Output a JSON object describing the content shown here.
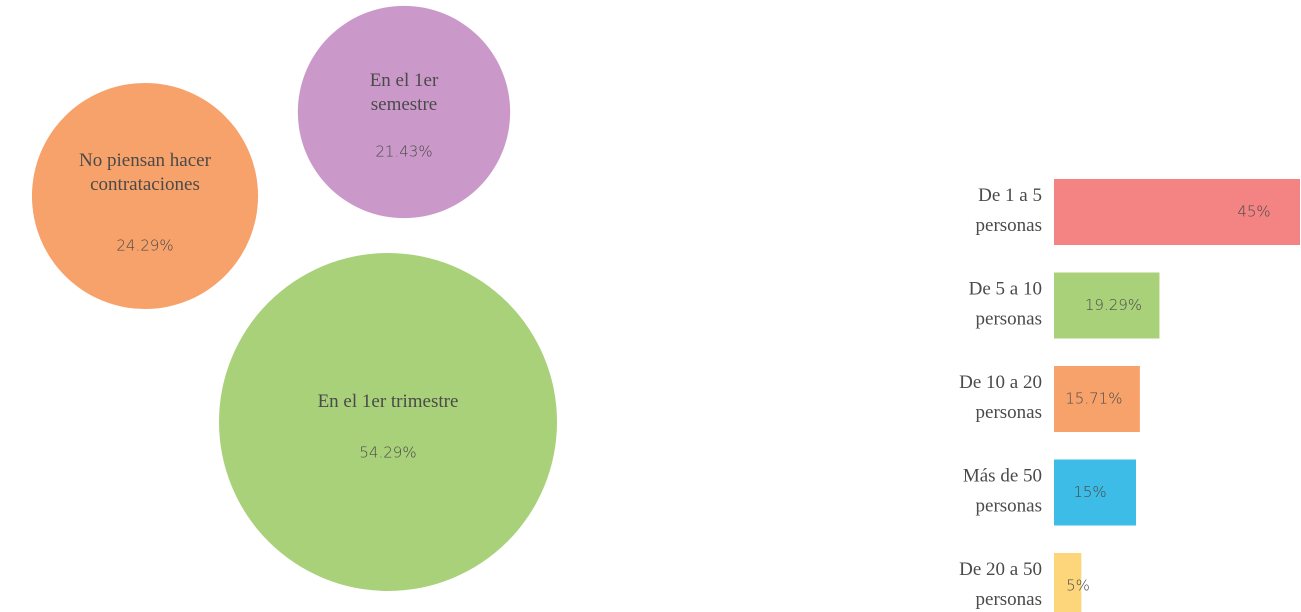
{
  "chart_data": [
    {
      "type": "bubble",
      "categories": [
        "No piensan hacer contrataciones",
        "En el 1er semestre",
        "En el 1er trimestre"
      ],
      "values": [
        24.29,
        21.43,
        54.29
      ],
      "value_labels": [
        "24.29%",
        "21.43%",
        "54.29%"
      ],
      "colors": [
        "#f7a26a",
        "#cb99c9",
        "#a9d17a"
      ]
    },
    {
      "type": "hbar",
      "categories": [
        "De 1 a 5 personas",
        "De 5 a 10 personas",
        "De 10 a 20 personas",
        "Más de 50 personas",
        "De 20 a 50 personas"
      ],
      "values": [
        45,
        19.29,
        15.71,
        15,
        5
      ],
      "value_labels": [
        "45%",
        "19.29%",
        "15.71%",
        "15%",
        "5%"
      ],
      "colors": [
        "#f48384",
        "#a9d17a",
        "#f7a26a",
        "#3dbce8",
        "#fdd57a"
      ]
    }
  ]
}
